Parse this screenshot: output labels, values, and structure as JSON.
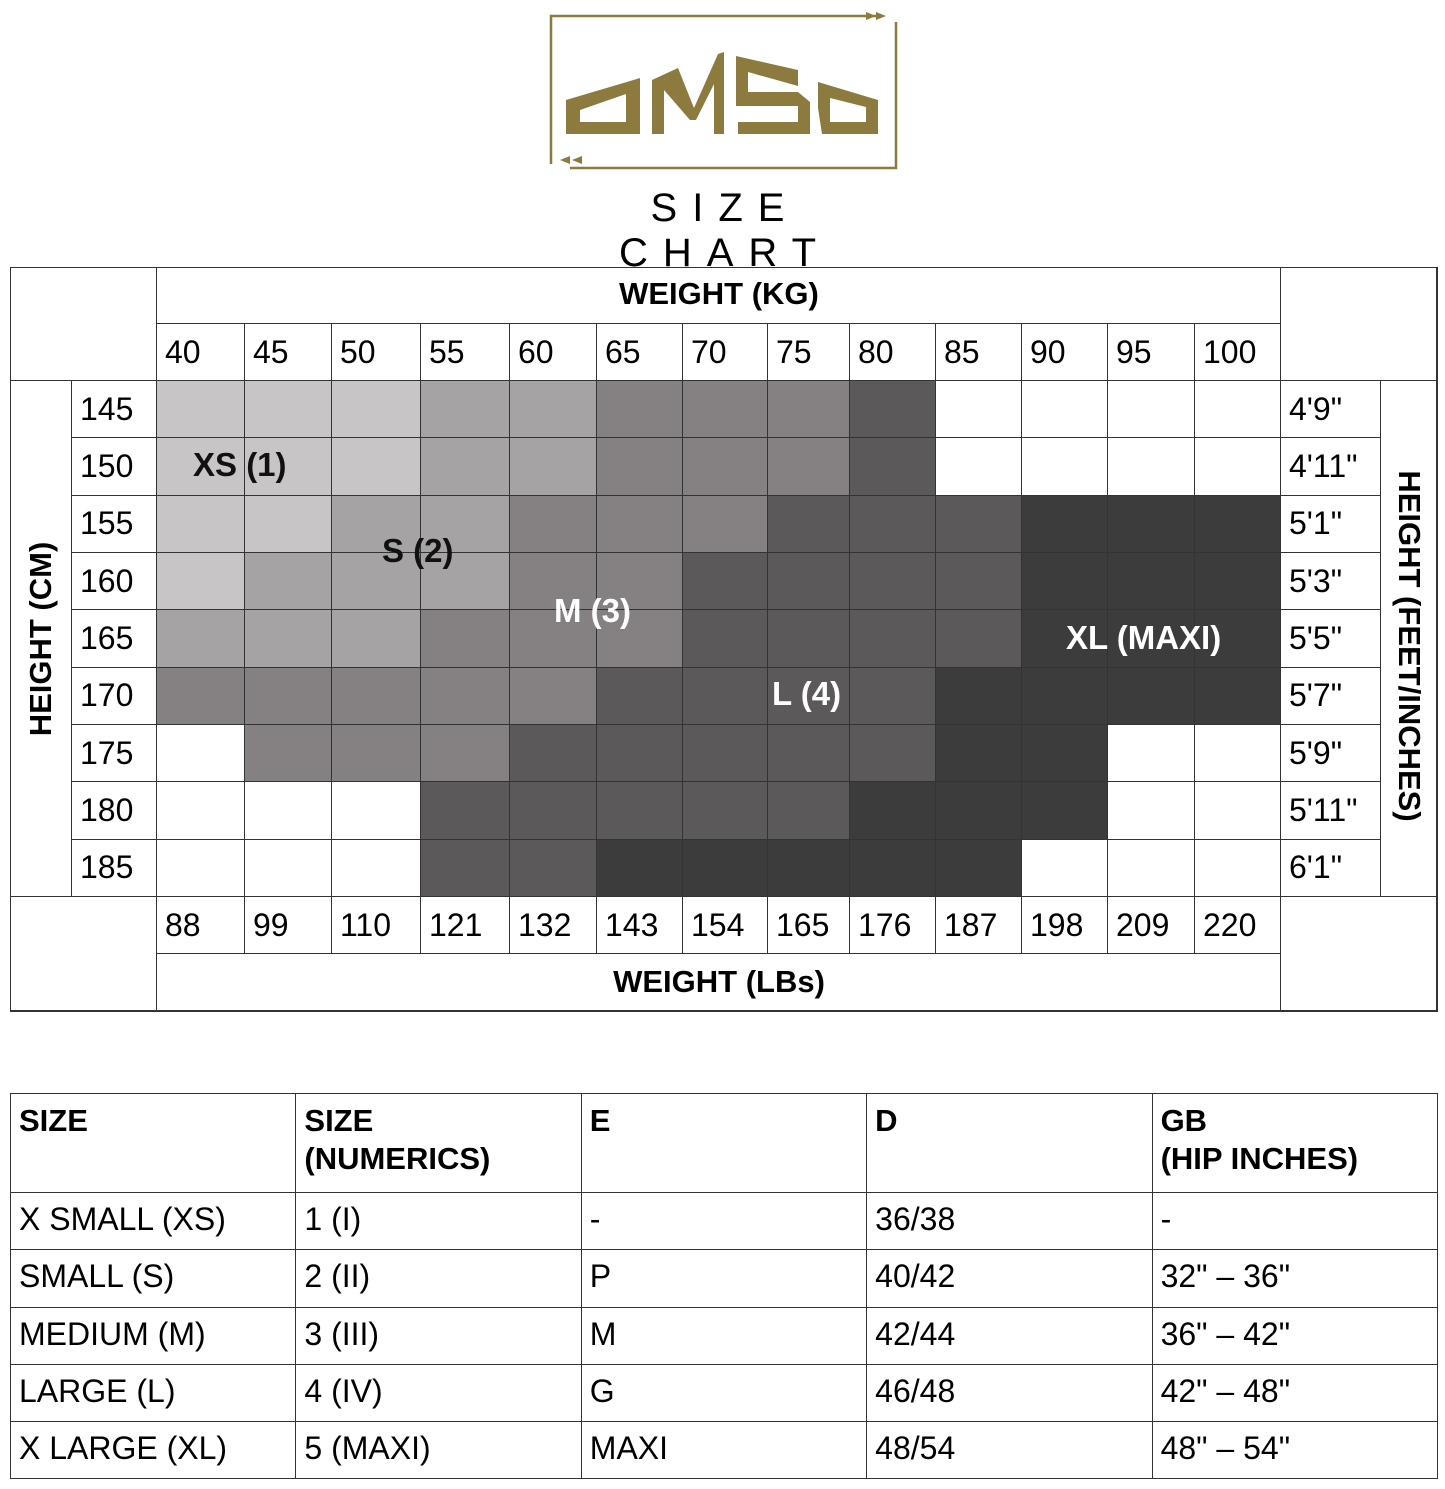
{
  "logo": {
    "text": "OMSA",
    "color": "#8c7a3e"
  },
  "title": "SIZE CHART",
  "grid": {
    "weight_kg_title": "WEIGHT (KG)",
    "weight_lbs_title": "WEIGHT (LBs)",
    "height_cm_title": "HEIGHT (CM)",
    "height_ft_title": "HEIGHT (FEET/INCHES)",
    "weights_kg": [
      "40",
      "45",
      "50",
      "55",
      "60",
      "65",
      "70",
      "75",
      "80",
      "85",
      "90",
      "95",
      "100"
    ],
    "weights_lbs": [
      "88",
      "99",
      "110",
      "121",
      "132",
      "143",
      "154",
      "165",
      "176",
      "187",
      "198",
      "209",
      "220"
    ],
    "heights_cm": [
      "145",
      "150",
      "155",
      "160",
      "165",
      "170",
      "175",
      "180",
      "185"
    ],
    "heights_ft": [
      "4'9\"",
      "4'11\"",
      "5'1\"",
      "5'3\"",
      "5'5\"",
      "5'7\"",
      "5'9\"",
      "5'11\"",
      "6'1\""
    ],
    "size_labels": [
      "XS (1)",
      "S (2)",
      "M (3)",
      "L (4)",
      "XL (MAXI)"
    ],
    "size_colors": [
      "#ffffff",
      "#c8c5c6",
      "#a6a3a4",
      "#858182",
      "#5b595a",
      "#3d3c3c"
    ],
    "cells": [
      [
        1,
        1,
        1,
        2,
        2,
        3,
        3,
        3,
        4,
        0,
        0,
        0,
        0
      ],
      [
        1,
        1,
        1,
        2,
        2,
        3,
        3,
        3,
        4,
        0,
        0,
        0,
        0
      ],
      [
        1,
        1,
        2,
        2,
        3,
        3,
        3,
        4,
        4,
        4,
        5,
        5,
        5
      ],
      [
        1,
        2,
        2,
        2,
        3,
        3,
        4,
        4,
        4,
        4,
        5,
        5,
        5
      ],
      [
        2,
        2,
        2,
        3,
        3,
        3,
        4,
        4,
        4,
        4,
        5,
        5,
        5
      ],
      [
        3,
        3,
        3,
        3,
        3,
        4,
        4,
        4,
        4,
        5,
        5,
        5,
        5
      ],
      [
        0,
        3,
        3,
        3,
        4,
        4,
        4,
        4,
        4,
        5,
        5,
        0,
        0
      ],
      [
        0,
        0,
        0,
        4,
        4,
        4,
        4,
        4,
        5,
        5,
        5,
        0,
        0
      ],
      [
        0,
        0,
        0,
        4,
        4,
        5,
        5,
        5,
        5,
        5,
        0,
        0,
        0
      ]
    ]
  },
  "table": {
    "headers": [
      [
        "SIZE",
        ""
      ],
      [
        "SIZE",
        "(NUMERICS)"
      ],
      [
        "E",
        ""
      ],
      [
        "D",
        ""
      ],
      [
        "GB",
        "(HIP INCHES)"
      ]
    ],
    "rows": [
      [
        "X SMALL (XS)",
        "1 (I)",
        "-",
        "36/38",
        "-"
      ],
      [
        "SMALL (S)",
        "2 (II)",
        "P",
        "40/42",
        "32\" – 36\""
      ],
      [
        "MEDIUM (M)",
        "3 (III)",
        "M",
        "42/44",
        "36\" – 42\""
      ],
      [
        "LARGE (L)",
        "4 (IV)",
        "G",
        "46/48",
        "42\" – 48\""
      ],
      [
        "X LARGE (XL)",
        "5 (MAXI)",
        "MAXI",
        "48/54",
        "48\" – 54\""
      ]
    ]
  }
}
